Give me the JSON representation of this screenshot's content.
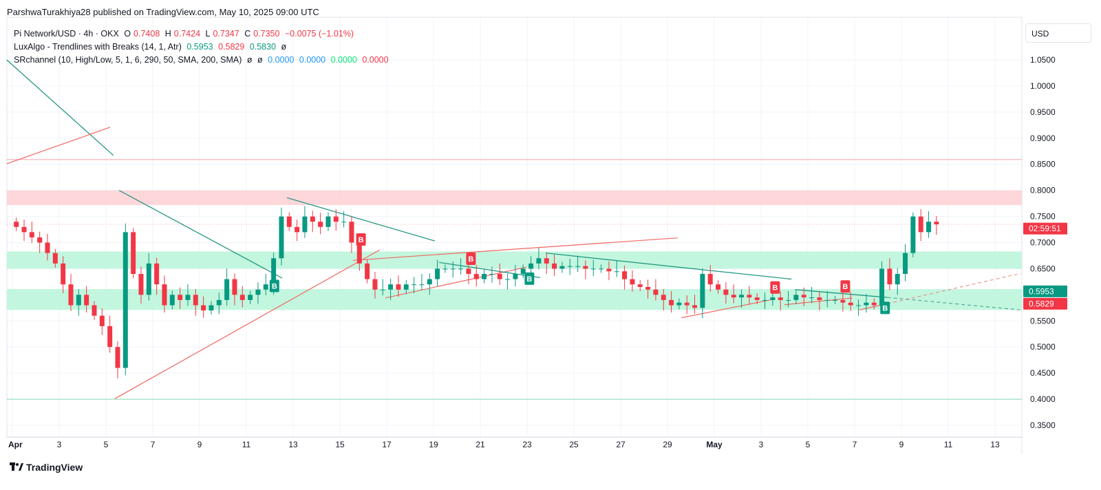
{
  "header": {
    "published": "ParshwaTurakhiya28 published on TradingView.com, May 10, 2025 09:00 UTC"
  },
  "legend": {
    "symbol": "Pi Network/USD · 4h · OKX",
    "o_label": "O",
    "o": "0.7408",
    "h_label": "H",
    "h": "0.7424",
    "l_label": "L",
    "l": "0.7347",
    "c_label": "C",
    "c": "0.7350",
    "change": "−0.0075 (−1.01%)",
    "ind1": "LuxAlgo - Trendlines with Breaks (14, 1, Atr)",
    "ind1_v1": "0.5953",
    "ind1_v2": "0.5829",
    "ind1_v3": "0.5830",
    "ind1_v4": "ø",
    "ind2": "SRchannel (10, High/Low, 5, 1, 6, 290, 50, SMA, 200, SMA)",
    "ind2_v1": "ø",
    "ind2_v2": "ø",
    "ind2_v3": "0.0000",
    "ind2_v4": "0.0000",
    "ind2_v5": "0.0000",
    "ind2_v6": "0.0000"
  },
  "currency_button": "USD",
  "footer": {
    "brand": "TradingView"
  },
  "colors": {
    "up": "#089981",
    "down": "#f23645",
    "green_zone": "#b9f5d8",
    "red_zone": "#fdd0d3",
    "blue": "#2962ff"
  },
  "chart_data": {
    "type": "candlestick",
    "title": "Pi Network/USD 4h",
    "ylim": [
      0.32,
      1.08
    ],
    "y_ticks": [
      "1.0500",
      "1.0000",
      "0.9500",
      "0.9000",
      "0.8500",
      "0.8000",
      "0.7500",
      "0.7000",
      "0.6500",
      "0.5500",
      "0.5000",
      "0.4500",
      "0.4000",
      "0.3500"
    ],
    "x_ticks": [
      {
        "day": 0,
        "label": "Apr"
      },
      {
        "day": 2,
        "label": "3"
      },
      {
        "day": 4,
        "label": "5"
      },
      {
        "day": 6,
        "label": "7"
      },
      {
        "day": 8,
        "label": "9"
      },
      {
        "day": 10,
        "label": "11"
      },
      {
        "day": 12,
        "label": "13"
      },
      {
        "day": 14,
        "label": "15"
      },
      {
        "day": 16,
        "label": "17"
      },
      {
        "day": 18,
        "label": "19"
      },
      {
        "day": 20,
        "label": "21"
      },
      {
        "day": 22,
        "label": "23"
      },
      {
        "day": 24,
        "label": "25"
      },
      {
        "day": 26,
        "label": "27"
      },
      {
        "day": 28,
        "label": "29"
      },
      {
        "day": 30,
        "label": "May"
      },
      {
        "day": 32,
        "label": "3"
      },
      {
        "day": 34,
        "label": "5"
      },
      {
        "day": 36,
        "label": "7"
      },
      {
        "day": 38,
        "label": "9"
      },
      {
        "day": 40,
        "label": "11"
      },
      {
        "day": 42,
        "label": "13"
      }
    ],
    "candle_step_days": 0.3333,
    "closes": [
      0.73,
      0.72,
      0.71,
      0.7,
      0.68,
      0.66,
      0.62,
      0.58,
      0.6,
      0.58,
      0.56,
      0.54,
      0.5,
      0.46,
      0.72,
      0.64,
      0.6,
      0.66,
      0.62,
      0.58,
      0.6,
      0.59,
      0.6,
      0.58,
      0.57,
      0.58,
      0.59,
      0.63,
      0.6,
      0.59,
      0.6,
      0.61,
      0.62,
      0.67,
      0.75,
      0.73,
      0.72,
      0.75,
      0.74,
      0.73,
      0.75,
      0.74,
      0.74,
      0.7,
      0.66,
      0.63,
      0.61,
      0.61,
      0.62,
      0.61,
      0.62,
      0.62,
      0.62,
      0.63,
      0.65,
      0.65,
      0.65,
      0.65,
      0.64,
      0.63,
      0.64,
      0.64,
      0.63,
      0.63,
      0.64,
      0.65,
      0.66,
      0.67,
      0.66,
      0.65,
      0.655,
      0.655,
      0.655,
      0.65,
      0.65,
      0.65,
      0.645,
      0.645,
      0.63,
      0.62,
      0.615,
      0.61,
      0.6,
      0.59,
      0.58,
      0.585,
      0.58,
      0.575,
      0.64,
      0.62,
      0.61,
      0.6,
      0.595,
      0.6,
      0.595,
      0.59,
      0.59,
      0.595,
      0.59,
      0.59,
      0.6,
      0.595,
      0.595,
      0.59,
      0.59,
      0.59,
      0.585,
      0.58,
      0.58,
      0.585,
      0.58,
      0.65,
      0.62,
      0.64,
      0.68,
      0.75,
      0.72,
      0.74,
      0.735
    ],
    "zones": [
      {
        "from": 0.772,
        "to": 0.8,
        "kind": "resistance"
      },
      {
        "from": 0.65,
        "to": 0.683,
        "kind": "support"
      },
      {
        "from": 0.571,
        "to": 0.611,
        "kind": "support"
      }
    ],
    "hlines": [
      {
        "price": 0.859,
        "kind": "resistance"
      },
      {
        "price": 0.4,
        "kind": "support"
      },
      {
        "price": 0.735,
        "kind": "last-price",
        "dotted": true
      }
    ],
    "trendlines": [
      {
        "kind": "down",
        "p": [
          [
            -0.24,
            1.05
          ],
          [
            4.32,
            0.867
          ]
        ]
      },
      {
        "kind": "up",
        "p": [
          [
            -0.24,
            0.851
          ],
          [
            4.18,
            0.921
          ]
        ]
      },
      {
        "kind": "down",
        "p": [
          [
            4.56,
            0.8
          ],
          [
            11.53,
            0.632
          ]
        ]
      },
      {
        "kind": "up",
        "p": [
          [
            4.38,
            0.401
          ],
          [
            15.7,
            0.686
          ]
        ]
      },
      {
        "kind": "down",
        "p": [
          [
            11.74,
            0.786
          ],
          [
            18.06,
            0.703
          ]
        ]
      },
      {
        "kind": "up",
        "p": [
          [
            14.56,
            0.666
          ],
          [
            28.44,
            0.709
          ]
        ]
      },
      {
        "kind": "up",
        "p": [
          [
            15.94,
            0.594
          ],
          [
            21.97,
            0.653
          ]
        ]
      },
      {
        "kind": "down",
        "p": [
          [
            18.24,
            0.662
          ],
          [
            22.56,
            0.633
          ]
        ]
      },
      {
        "kind": "down",
        "p": [
          [
            22.8,
            0.68
          ],
          [
            33.3,
            0.63
          ]
        ]
      },
      {
        "kind": "up",
        "p": [
          [
            28.6,
            0.556
          ],
          [
            32.6,
            0.592
          ]
        ]
      },
      {
        "kind": "down",
        "p": [
          [
            33.44,
            0.61
          ],
          [
            37.4,
            0.595
          ]
        ]
      },
      {
        "kind": "down",
        "dashed": true,
        "p": [
          [
            37.4,
            0.595
          ],
          [
            43.1,
            0.571
          ]
        ]
      },
      {
        "kind": "up",
        "p": [
          [
            33.0,
            0.581
          ],
          [
            35.9,
            0.594
          ]
        ]
      },
      {
        "kind": "up",
        "p": [
          [
            36.2,
            0.571
          ],
          [
            37.4,
            0.583
          ]
        ]
      },
      {
        "kind": "up",
        "dashed": true,
        "p": [
          [
            37.4,
            0.583
          ],
          [
            43.1,
            0.641
          ]
        ]
      }
    ],
    "break_labels": [
      {
        "day": 11.2,
        "price": 0.617,
        "text": "B",
        "kind": "up"
      },
      {
        "day": 22.1,
        "price": 0.631,
        "text": "B",
        "kind": "up"
      },
      {
        "day": 37.3,
        "price": 0.575,
        "text": "B",
        "kind": "up"
      },
      {
        "day": 14.9,
        "price": 0.706,
        "text": "B",
        "kind": "down"
      },
      {
        "day": 19.6,
        "price": 0.669,
        "text": "B",
        "kind": "down"
      },
      {
        "day": 32.6,
        "price": 0.614,
        "text": "B",
        "kind": "down"
      },
      {
        "day": 35.6,
        "price": 0.616,
        "text": "B",
        "kind": "down"
      }
    ],
    "price_badges": [
      {
        "price": 0.735,
        "text": "02:59:51",
        "kind": "down"
      },
      {
        "price": 0.5953,
        "text": "0.5953",
        "kind": "up"
      },
      {
        "price": 0.5829,
        "text": "0.5829",
        "kind": "down"
      }
    ]
  }
}
